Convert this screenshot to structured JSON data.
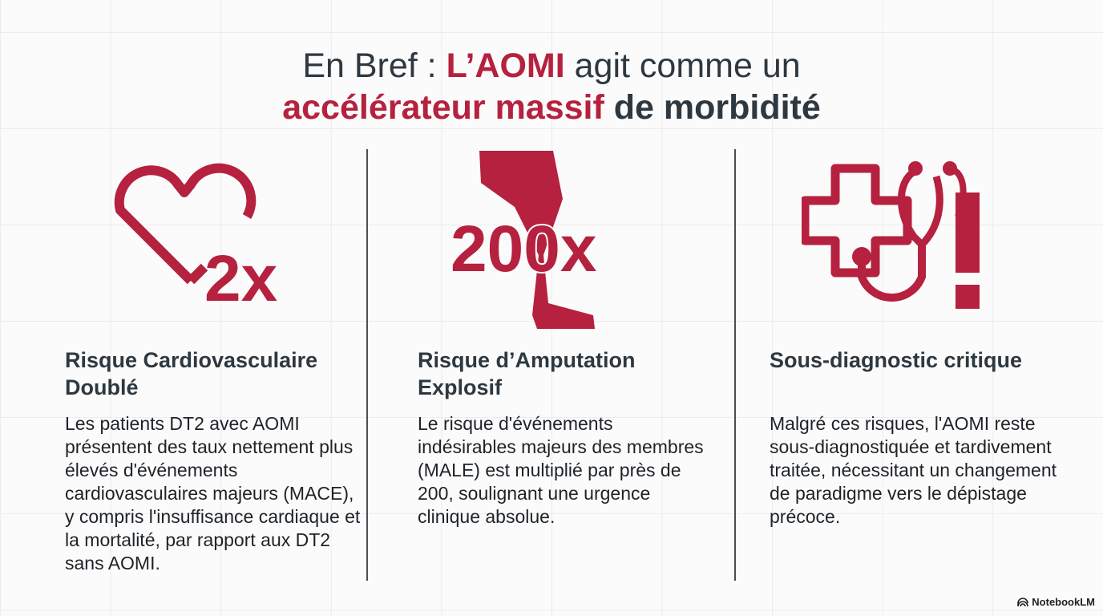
{
  "title": {
    "prefix": "En Bref : ",
    "highlight1": "L’AOMI",
    "mid": " agit comme un",
    "highlight2": "accélérateur massif",
    "suffix": " de morbidité"
  },
  "colors": {
    "accent": "#b5213e",
    "text": "#2e3840",
    "bullet": "#5a7494"
  },
  "columns": [
    {
      "icon": "heart-icon",
      "stat": "2x",
      "heading": "Risque Cardiovasculaire Doublé",
      "body": "Les patients DT2 avec AOMI présentent des taux nettement plus élevés d'événements cardiovasculaires majeurs (MACE), y compris l'insuffisance cardiaque et la mortalité, par rapport aux DT2 sans AOMI."
    },
    {
      "icon": "leg-icon",
      "stat": "200x",
      "heading": "Risque d’Amputation Explosif",
      "body": "Le risque d'événements indésirables majeurs des membres (MALE) est multiplié par près de 200, soulignant une urgence clinique absolue."
    },
    {
      "icon": "medical-cross-stethoscope-alert-icon",
      "heading": "Sous-diagnostic critique",
      "body": "Malgré ces risques, l'AOMI reste sous-diagnostiquée et tardivement traitée, nécessitant un changement de paradigme vers le dépistage précoce."
    }
  ],
  "branding": {
    "logo_text": "NotebookLM"
  }
}
